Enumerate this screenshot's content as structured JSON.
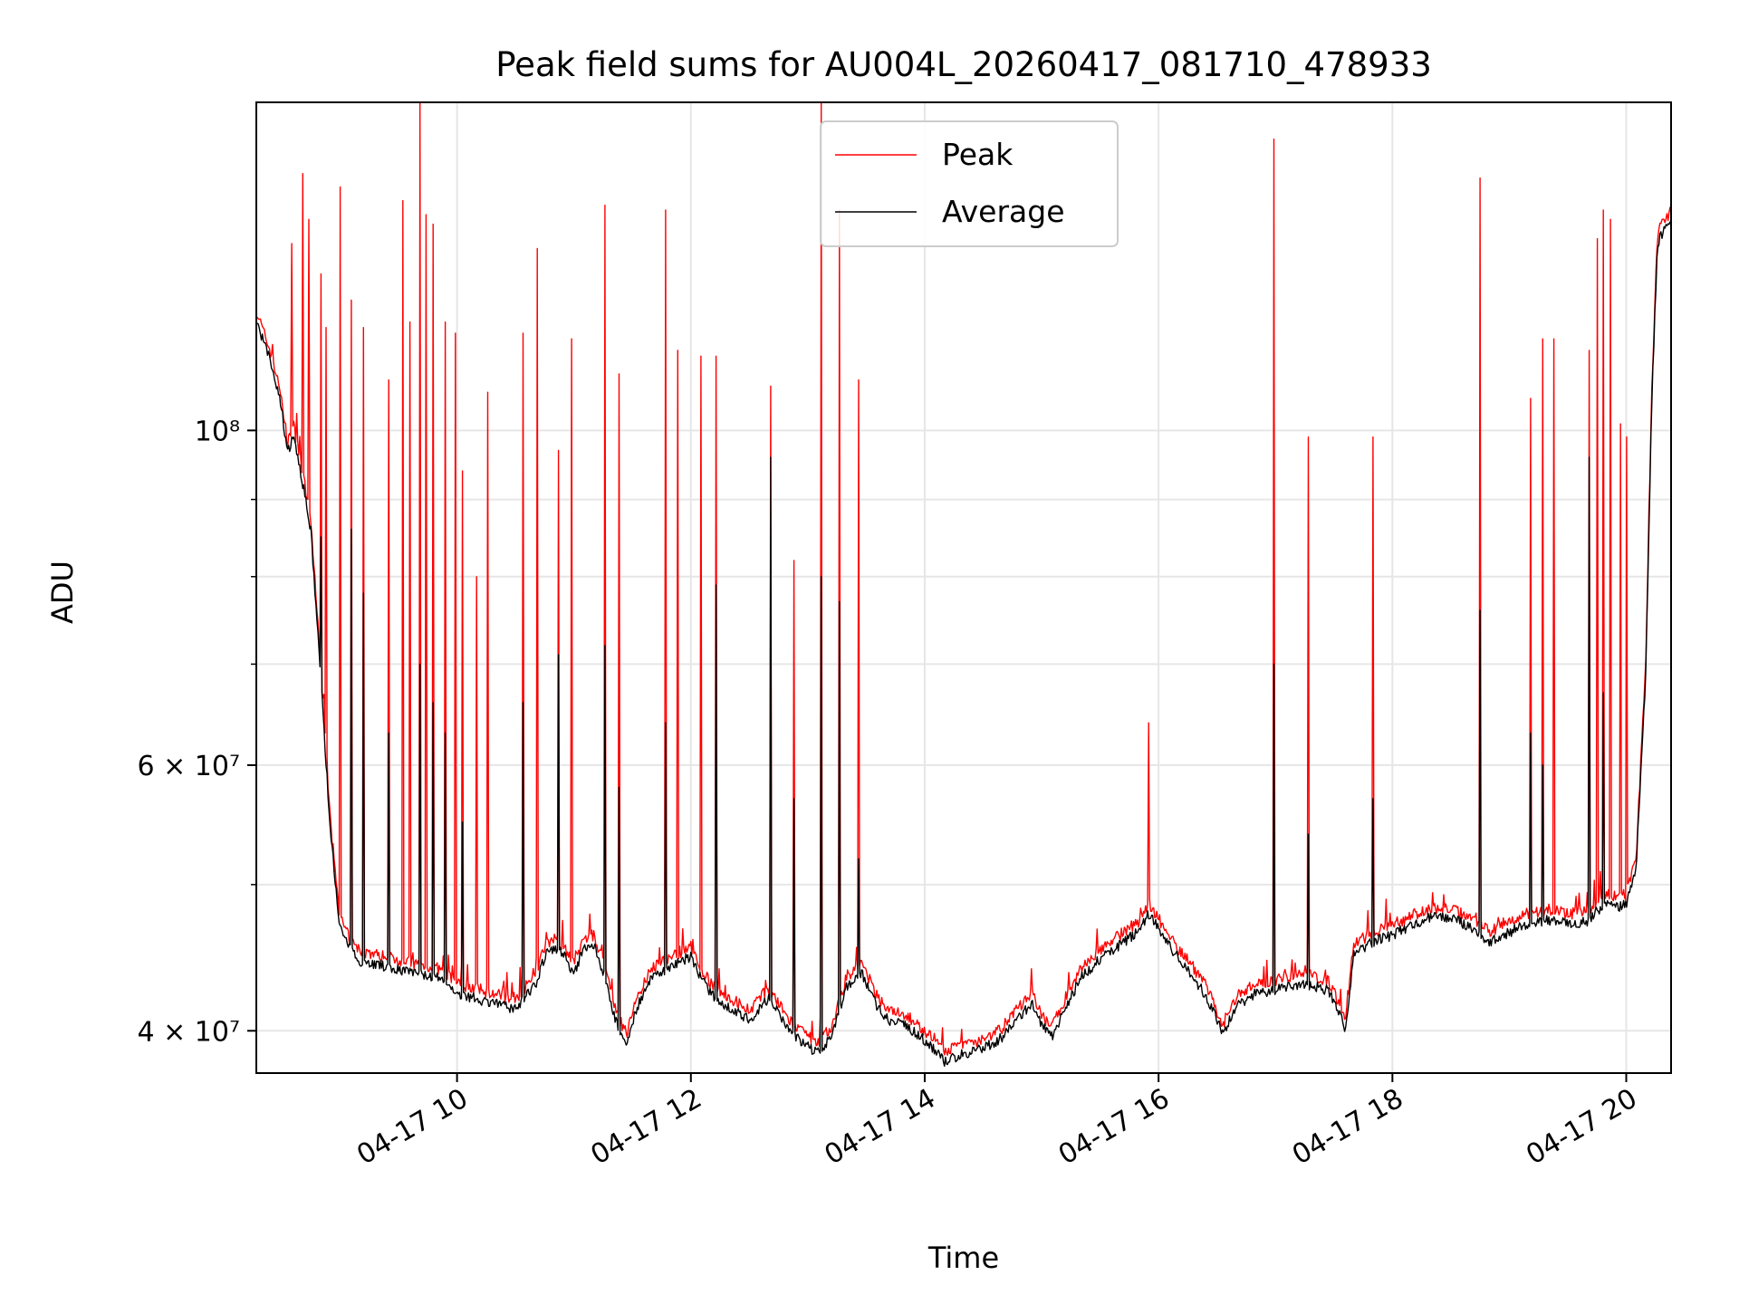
{
  "chart_data": {
    "type": "line",
    "title": "Peak field sums for AU004L_20260417_081710_478933",
    "xlabel": "Time",
    "ylabel": "ADU",
    "y_scale": "log",
    "xlim": [
      "04-17 08:17",
      "04-17 20:23"
    ],
    "ylim": [
      37500000,
      165000000
    ],
    "grid": true,
    "legend_position": "top-center",
    "x_tick_labels": [
      "04-17 10",
      "04-17 12",
      "04-17 14",
      "04-17 16",
      "04-17 18",
      "04-17 20"
    ],
    "x_tick_hours": [
      10,
      12,
      14,
      16,
      18,
      20
    ],
    "y_tick_labels": [
      "4 × 10⁷",
      "6 × 10⁷",
      "10⁸"
    ],
    "y_tick_values": [
      40000000,
      60000000,
      100000000
    ],
    "y_minor_ticks": [
      50000000,
      70000000,
      80000000,
      90000000
    ],
    "series": [
      {
        "name": "Peak",
        "color": "#ff0000",
        "baseline_points": [
          [
            "08:17",
            120000000
          ],
          [
            "08:25",
            112000000
          ],
          [
            "08:30",
            105000000
          ],
          [
            "08:33",
            98000000
          ],
          [
            "08:36",
            101000000
          ],
          [
            "08:40",
            95000000
          ],
          [
            "08:45",
            87000000
          ],
          [
            "08:50",
            70000000
          ],
          [
            "08:55",
            55000000
          ],
          [
            "09:00",
            47500000
          ],
          [
            "09:05",
            46000000
          ],
          [
            "09:10",
            45200000
          ],
          [
            "09:30",
            44600000
          ],
          [
            "09:50",
            44000000
          ],
          [
            "10:00",
            43000000
          ],
          [
            "10:20",
            42300000
          ],
          [
            "10:30",
            42000000
          ],
          [
            "10:40",
            43500000
          ],
          [
            "10:45",
            45500000
          ],
          [
            "10:50",
            46200000
          ],
          [
            "10:55",
            45500000
          ],
          [
            "11:00",
            44300000
          ],
          [
            "11:05",
            46000000
          ],
          [
            "11:10",
            46300000
          ],
          [
            "11:15",
            44500000
          ],
          [
            "11:22",
            41000000
          ],
          [
            "11:27",
            39800000
          ],
          [
            "11:32",
            42000000
          ],
          [
            "11:40",
            44000000
          ],
          [
            "11:50",
            44800000
          ],
          [
            "12:00",
            45500000
          ],
          [
            "12:05",
            44000000
          ],
          [
            "12:12",
            42700000
          ],
          [
            "12:20",
            42000000
          ],
          [
            "12:30",
            41300000
          ],
          [
            "12:40",
            42700000
          ],
          [
            "12:50",
            40700000
          ],
          [
            "12:58",
            39800000
          ],
          [
            "13:05",
            39300000
          ],
          [
            "13:12",
            40200000
          ],
          [
            "13:20",
            43500000
          ],
          [
            "13:28",
            44300000
          ],
          [
            "13:35",
            42300000
          ],
          [
            "13:42",
            41200000
          ],
          [
            "13:50",
            41000000
          ],
          [
            "14:00",
            40000000
          ],
          [
            "14:05",
            39500000
          ],
          [
            "14:10",
            38700000
          ],
          [
            "14:20",
            39200000
          ],
          [
            "14:30",
            39500000
          ],
          [
            "14:40",
            40200000
          ],
          [
            "14:45",
            41000000
          ],
          [
            "14:50",
            41700000
          ],
          [
            "14:55",
            42300000
          ],
          [
            "15:00",
            41000000
          ],
          [
            "15:05",
            40200000
          ],
          [
            "15:10",
            41500000
          ],
          [
            "15:20",
            44000000
          ],
          [
            "15:30",
            45300000
          ],
          [
            "15:40",
            46300000
          ],
          [
            "15:50",
            47300000
          ],
          [
            "15:55",
            48600000
          ],
          [
            "16:00",
            47500000
          ],
          [
            "16:05",
            46300000
          ],
          [
            "16:10",
            45400000
          ],
          [
            "16:15",
            44600000
          ],
          [
            "16:25",
            42700000
          ],
          [
            "16:33",
            40400000
          ],
          [
            "16:40",
            42200000
          ],
          [
            "16:50",
            43000000
          ],
          [
            "17:00",
            43200000
          ],
          [
            "17:10",
            43600000
          ],
          [
            "17:20",
            43500000
          ],
          [
            "17:27",
            43200000
          ],
          [
            "17:32",
            41800000
          ],
          [
            "17:36",
            40700000
          ],
          [
            "17:40",
            45600000
          ],
          [
            "17:50",
            46500000
          ],
          [
            "18:00",
            47000000
          ],
          [
            "18:10",
            47700000
          ],
          [
            "18:20",
            48300000
          ],
          [
            "18:30",
            48200000
          ],
          [
            "18:40",
            47600000
          ],
          [
            "18:50",
            46500000
          ],
          [
            "19:00",
            47200000
          ],
          [
            "19:10",
            47900000
          ],
          [
            "19:20",
            48100000
          ],
          [
            "19:30",
            47800000
          ],
          [
            "19:40",
            48000000
          ],
          [
            "19:50",
            49500000
          ],
          [
            "19:55",
            49000000
          ],
          [
            "20:00",
            49300000
          ],
          [
            "20:05",
            52000000
          ],
          [
            "20:10",
            70000000
          ],
          [
            "20:13",
            105000000
          ],
          [
            "20:16",
            135000000
          ],
          [
            "20:18",
            137000000
          ],
          [
            "20:20",
            138000000
          ],
          [
            "20:23",
            140000000
          ]
        ],
        "spikes": [
          [
            "08:35",
            133000000
          ],
          [
            "08:41",
            148000000
          ],
          [
            "08:44",
            138000000
          ],
          [
            "08:50",
            127000000
          ],
          [
            "08:53",
            117000000
          ],
          [
            "09:00",
            145000000
          ],
          [
            "09:06",
            122000000
          ],
          [
            "09:12",
            117000000
          ],
          [
            "09:25",
            108000000
          ],
          [
            "09:32",
            142000000
          ],
          [
            "09:36",
            118000000
          ],
          [
            "09:41",
            165000000
          ],
          [
            "09:44",
            139000000
          ],
          [
            "09:48",
            137000000
          ],
          [
            "09:54",
            118000000
          ],
          [
            "09:59",
            116000000
          ],
          [
            "10:03",
            94000000
          ],
          [
            "10:10",
            80000000
          ],
          [
            "10:16",
            106000000
          ],
          [
            "10:34",
            116000000
          ],
          [
            "10:41",
            132000000
          ],
          [
            "10:52",
            97000000
          ],
          [
            "10:59",
            115000000
          ],
          [
            "11:16",
            141000000
          ],
          [
            "11:23",
            109000000
          ],
          [
            "11:47",
            140000000
          ],
          [
            "11:53",
            113000000
          ],
          [
            "12:05",
            112000000
          ],
          [
            "12:13",
            112000000
          ],
          [
            "12:41",
            107000000
          ],
          [
            "12:53",
            82000000
          ],
          [
            "13:07",
            165000000
          ],
          [
            "13:16",
            140000000
          ],
          [
            "13:26",
            108000000
          ],
          [
            "15:55",
            64000000
          ],
          [
            "16:59",
            156000000
          ],
          [
            "17:17",
            99000000
          ],
          [
            "17:50",
            99000000
          ],
          [
            "18:45",
            147000000
          ],
          [
            "19:11",
            105000000
          ],
          [
            "19:17",
            115000000
          ],
          [
            "19:23",
            115000000
          ],
          [
            "19:41",
            113000000
          ],
          [
            "19:45",
            134000000
          ],
          [
            "19:48",
            140000000
          ],
          [
            "19:52",
            138000000
          ],
          [
            "19:57",
            101000000
          ],
          [
            "20:00",
            99000000
          ]
        ]
      },
      {
        "name": "Average",
        "color": "#000000",
        "baseline_offset_factor": 0.985,
        "spikes": [
          [
            "08:50",
            85000000
          ],
          [
            "09:06",
            86000000
          ],
          [
            "09:12",
            78000000
          ],
          [
            "09:25",
            63000000
          ],
          [
            "09:41",
            70000000
          ],
          [
            "09:48",
            66000000
          ],
          [
            "09:54",
            63000000
          ],
          [
            "10:03",
            55000000
          ],
          [
            "10:34",
            66000000
          ],
          [
            "10:52",
            71000000
          ],
          [
            "11:16",
            72000000
          ],
          [
            "11:23",
            58000000
          ],
          [
            "11:47",
            64000000
          ],
          [
            "12:13",
            79000000
          ],
          [
            "12:41",
            96000000
          ],
          [
            "12:53",
            57000000
          ],
          [
            "13:07",
            80000000
          ],
          [
            "13:16",
            77000000
          ],
          [
            "13:26",
            52000000
          ],
          [
            "16:59",
            70000000
          ],
          [
            "17:17",
            54000000
          ],
          [
            "17:50",
            57000000
          ],
          [
            "18:45",
            76000000
          ],
          [
            "19:11",
            63000000
          ],
          [
            "19:17",
            60000000
          ],
          [
            "19:41",
            96000000
          ],
          [
            "19:48",
            67000000
          ]
        ]
      }
    ]
  }
}
